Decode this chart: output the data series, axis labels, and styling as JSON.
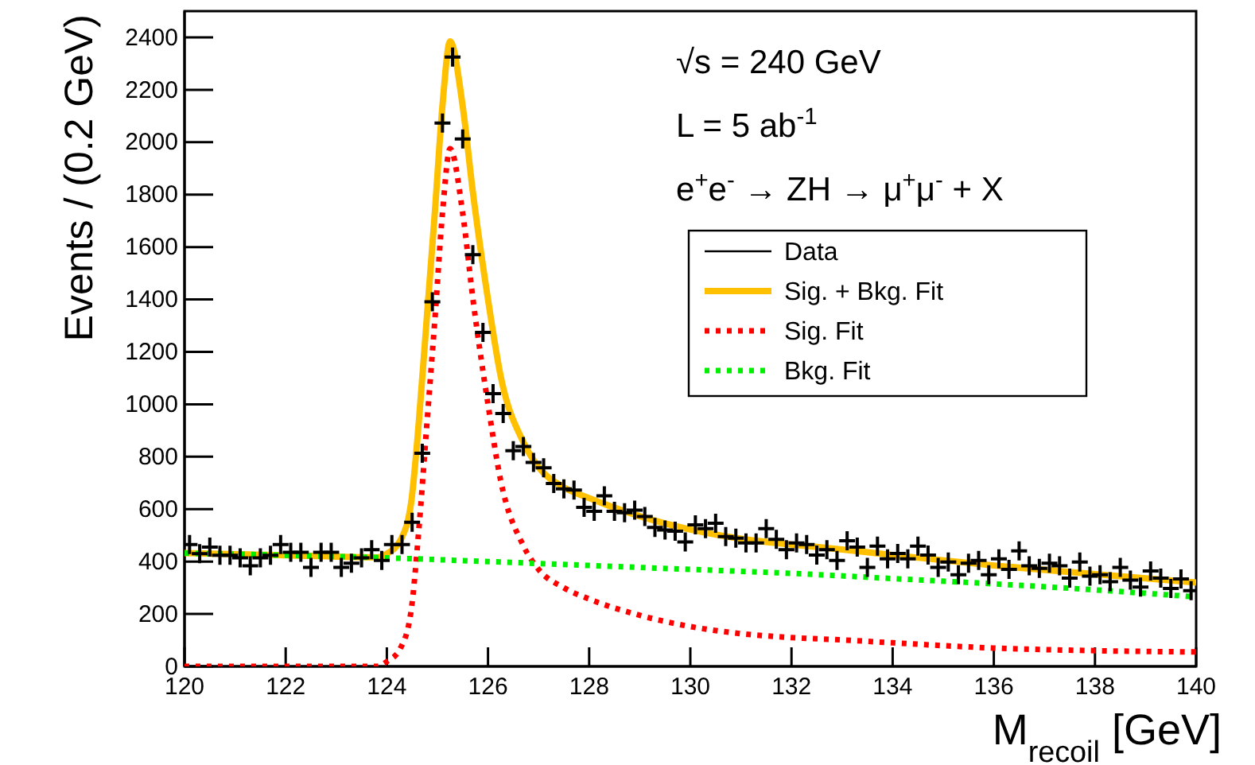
{
  "chart_data": {
    "type": "scatter",
    "xlabel": "M$_{recoil}$ [GeV]",
    "ylabel": "Events / (0.2 GeV)",
    "xlim": [
      120,
      140
    ],
    "xticks": [
      120,
      122,
      124,
      126,
      128,
      130,
      132,
      134,
      136,
      138,
      140
    ],
    "ylim": [
      0,
      2500
    ],
    "yticks": [
      0,
      200,
      400,
      600,
      800,
      1000,
      1200,
      1400,
      1600,
      1800,
      2000,
      2200,
      2400
    ],
    "grid": false,
    "legend": "top right",
    "annotations": [
      "√s = 240 GeV",
      "L = 5 ab$^{-1}$",
      "e$^{+}$e$^{-}$ → ZH → μ$^{+}$μ$^{-}$ + X"
    ],
    "series": [
      {
        "name": "Data",
        "type": "scatter",
        "marker": "cross",
        "color": "#000000",
        "x": [
          120.1,
          120.3,
          120.5,
          120.7,
          120.9,
          121.1,
          121.3,
          121.5,
          121.7,
          121.9,
          122.1,
          122.3,
          122.5,
          122.7,
          122.9,
          123.1,
          123.3,
          123.5,
          123.7,
          123.9,
          124.1,
          124.3,
          124.5,
          124.7,
          124.9,
          125.1,
          125.3,
          125.5,
          125.7,
          125.9,
          126.1,
          126.3,
          126.5,
          126.7,
          126.9,
          127.1,
          127.3,
          127.5,
          127.7,
          127.9,
          128.1,
          128.3,
          128.5,
          128.7,
          128.9,
          129.1,
          129.3,
          129.5,
          129.7,
          129.9,
          130.1,
          130.3,
          130.5,
          130.7,
          130.9,
          131.1,
          131.3,
          131.5,
          131.7,
          131.9,
          132.1,
          132.3,
          132.5,
          132.7,
          132.9,
          133.1,
          133.3,
          133.5,
          133.7,
          133.9,
          134.1,
          134.3,
          134.5,
          134.7,
          134.9,
          135.1,
          135.3,
          135.5,
          135.7,
          135.9,
          136.1,
          136.3,
          136.5,
          136.7,
          136.9,
          137.1,
          137.3,
          137.5,
          137.7,
          137.9,
          138.1,
          138.3,
          138.5,
          138.7,
          138.9,
          139.1,
          139.3,
          139.5,
          139.7,
          139.9
        ],
        "values": [
          465,
          430,
          455,
          424,
          424,
          414,
          384,
          414,
          424,
          465,
          435,
          435,
          378,
          435,
          435,
          378,
          394,
          414,
          445,
          404,
          465,
          465,
          550,
          813,
          1391,
          2073,
          2325,
          2012,
          1571,
          1274,
          1041,
          965,
          823,
          839,
          778,
          758,
          698,
          677,
          673,
          607,
          592,
          651,
          592,
          586,
          596,
          572,
          530,
          520,
          516,
          475,
          540,
          526,
          546,
          495,
          489,
          471,
          471,
          526,
          485,
          445,
          471,
          465,
          425,
          445,
          404,
          479,
          455,
          378,
          459,
          410,
          431,
          410,
          459,
          425,
          378,
          398,
          350,
          394,
          404,
          350,
          410,
          370,
          441,
          384,
          374,
          394,
          384,
          337,
          398,
          344,
          350,
          323,
          378,
          329,
          303,
          364,
          337,
          297,
          334,
          289
        ]
      },
      {
        "name": "Sig. + Bkg. Fit",
        "type": "line",
        "color": "#ffc000",
        "line_style": "solid",
        "x": [
          120,
          122,
          123.8,
          124,
          124.27,
          124.48,
          124.63,
          124.79,
          124.95,
          125.1,
          125.25,
          125.5,
          125.7,
          126,
          126.25,
          126.7,
          127,
          127.5,
          128,
          129,
          130,
          131,
          132,
          133,
          134,
          136,
          138,
          140
        ],
        "values": [
          432,
          424,
          416,
          430,
          482,
          624,
          927,
          1330,
          1735,
          2140,
          2385,
          2137,
          1811,
          1400,
          1108,
          855,
          760,
          683,
          642,
          573,
          522,
          487,
          465,
          446,
          425,
          385,
          352,
          320
        ]
      },
      {
        "name": "Sig. Fit",
        "type": "line",
        "color": "#ff0000",
        "line_style": "dotted",
        "x": [
          120,
          123.8,
          124,
          124.27,
          124.48,
          124.63,
          124.79,
          124.95,
          125.1,
          125.25,
          125.5,
          125.7,
          126,
          126.25,
          126.7,
          127,
          127.5,
          128,
          129,
          130,
          131,
          132,
          133,
          134,
          136,
          138,
          140
        ],
        "values": [
          0,
          0,
          18,
          70,
          212,
          516,
          920,
          1324,
          1729,
          1975,
          1729,
          1405,
          1000,
          710,
          460,
          370,
          300,
          257,
          195,
          152,
          125,
          110,
          101,
          90,
          70,
          60,
          55
        ]
      },
      {
        "name": "Bkg. Fit",
        "type": "line",
        "color": "#00ee00",
        "line_style": "dotted",
        "x": [
          120,
          122,
          124,
          126,
          128,
          130,
          132,
          134,
          136,
          138,
          140
        ],
        "values": [
          432,
          424,
          414,
          400,
          385,
          370,
          355,
          335,
          315,
          292,
          265
        ]
      }
    ]
  }
}
